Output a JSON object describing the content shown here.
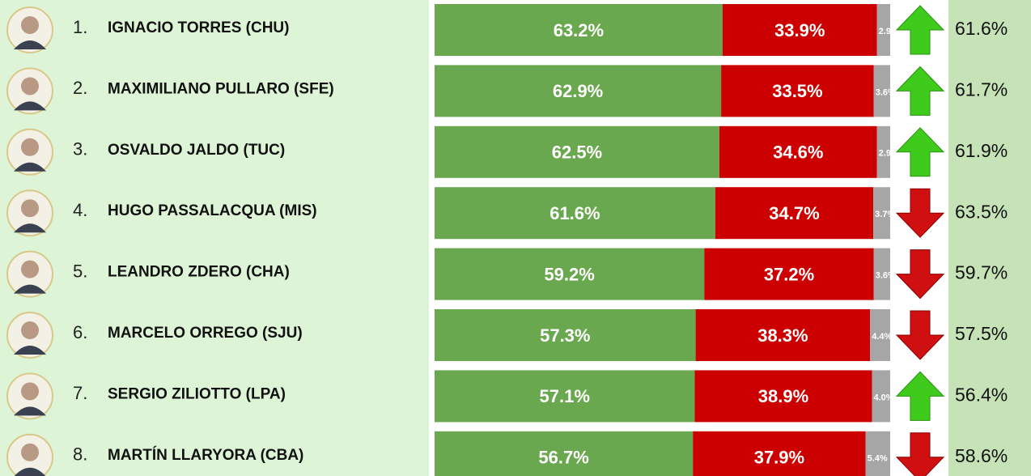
{
  "rows": [
    {
      "rank": "1.",
      "name": "IGNACIO TORRES (CHU)",
      "approve": 63.2,
      "approve_label": "63.2%",
      "disapprove": 33.9,
      "disapprove_label": "33.9%",
      "unsure": 2.9,
      "unsure_label": "2.9%",
      "trend": "up",
      "previous": "61.6%"
    },
    {
      "rank": "2.",
      "name": "MAXIMILIANO PULLARO (SFE)",
      "approve": 62.9,
      "approve_label": "62.9%",
      "disapprove": 33.5,
      "disapprove_label": "33.5%",
      "unsure": 3.6,
      "unsure_label": "3.6%",
      "trend": "up",
      "previous": "61.7%"
    },
    {
      "rank": "3.",
      "name": "OSVALDO JALDO (TUC)",
      "approve": 62.5,
      "approve_label": "62.5%",
      "disapprove": 34.6,
      "disapprove_label": "34.6%",
      "unsure": 2.9,
      "unsure_label": "2.9%",
      "trend": "up",
      "previous": "61.9%"
    },
    {
      "rank": "4.",
      "name": "HUGO PASSALACQUA (MIS)",
      "approve": 61.6,
      "approve_label": "61.6%",
      "disapprove": 34.7,
      "disapprove_label": "34.7%",
      "unsure": 3.7,
      "unsure_label": "3.7%",
      "trend": "down",
      "previous": "63.5%"
    },
    {
      "rank": "5.",
      "name": "LEANDRO ZDERO (CHA)",
      "approve": 59.2,
      "approve_label": "59.2%",
      "disapprove": 37.2,
      "disapprove_label": "37.2%",
      "unsure": 3.6,
      "unsure_label": "3.6%",
      "trend": "down",
      "previous": "59.7%"
    },
    {
      "rank": "6.",
      "name": "MARCELO ORREGO (SJU)",
      "approve": 57.3,
      "approve_label": "57.3%",
      "disapprove": 38.3,
      "disapprove_label": "38.3%",
      "unsure": 4.4,
      "unsure_label": "4.4%",
      "trend": "down",
      "previous": "57.5%"
    },
    {
      "rank": "7.",
      "name": "SERGIO ZILIOTTO (LPA)",
      "approve": 57.1,
      "approve_label": "57.1%",
      "disapprove": 38.9,
      "disapprove_label": "38.9%",
      "unsure": 4.0,
      "unsure_label": "4.0%",
      "trend": "up",
      "previous": "56.4%"
    },
    {
      "rank": "8.",
      "name": "MARTÍN LLARYORA (CBA)",
      "approve": 56.7,
      "approve_label": "56.7%",
      "disapprove": 37.9,
      "disapprove_label": "37.9%",
      "unsure": 5.4,
      "unsure_label": "5.4%",
      "trend": "down",
      "previous": "58.6%"
    }
  ]
}
